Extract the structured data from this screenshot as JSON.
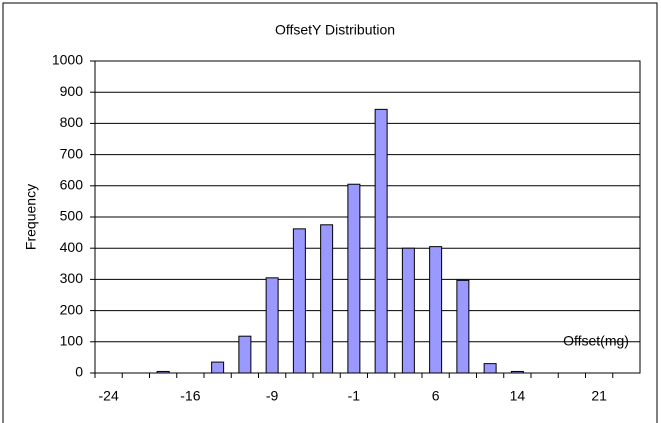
{
  "chart_data": {
    "type": "bar",
    "title": "OffsetY Distribution",
    "x_label": "Offset(mg)",
    "y_label": "Frequency",
    "categories": [
      -24,
      null,
      null,
      -16,
      null,
      null,
      -9,
      null,
      null,
      -1,
      null,
      null,
      6,
      null,
      null,
      14,
      null,
      null,
      21,
      null
    ],
    "values": [
      0,
      0,
      5,
      0,
      35,
      118,
      305,
      462,
      475,
      605,
      845,
      400,
      405,
      297,
      30,
      5,
      0,
      0,
      0,
      0
    ],
    "color": "#9999ff",
    "ylim": [
      0,
      1000
    ],
    "yticks": [
      0,
      100,
      200,
      300,
      400,
      500,
      600,
      700,
      800,
      900,
      1000
    ],
    "grid": true
  }
}
